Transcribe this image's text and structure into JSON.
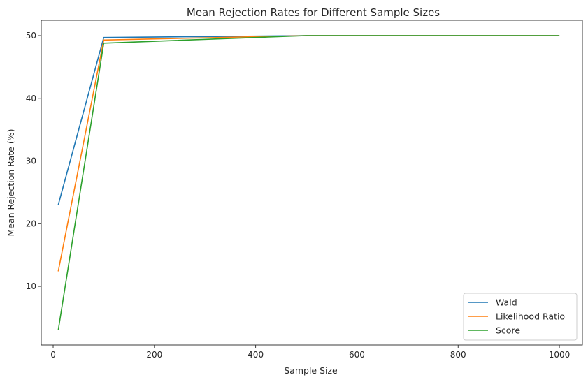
{
  "chart_data": {
    "type": "line",
    "title": "Mean Rejection Rates for Different Sample Sizes",
    "xlabel": "Sample Size",
    "ylabel": "Mean Rejection Rate (%)",
    "xlim": [
      -23.5,
      1045.5
    ],
    "ylim": [
      0.65,
      52.45
    ],
    "xticks": [
      0,
      200,
      400,
      600,
      800,
      1000
    ],
    "yticks": [
      10,
      20,
      30,
      40,
      50
    ],
    "x": [
      10,
      100,
      500,
      1000
    ],
    "series": [
      {
        "name": "Wald",
        "color": "#1f77b4",
        "values": [
          23.0,
          49.7,
          50.0,
          50.0
        ]
      },
      {
        "name": "Likelihood Ratio",
        "color": "#ff7f0e",
        "values": [
          12.4,
          49.3,
          50.0,
          50.0
        ]
      },
      {
        "name": "Score",
        "color": "#2ca02c",
        "values": [
          3.0,
          48.8,
          50.0,
          50.0
        ]
      }
    ],
    "grid": false,
    "legend_position": "lower-right"
  }
}
